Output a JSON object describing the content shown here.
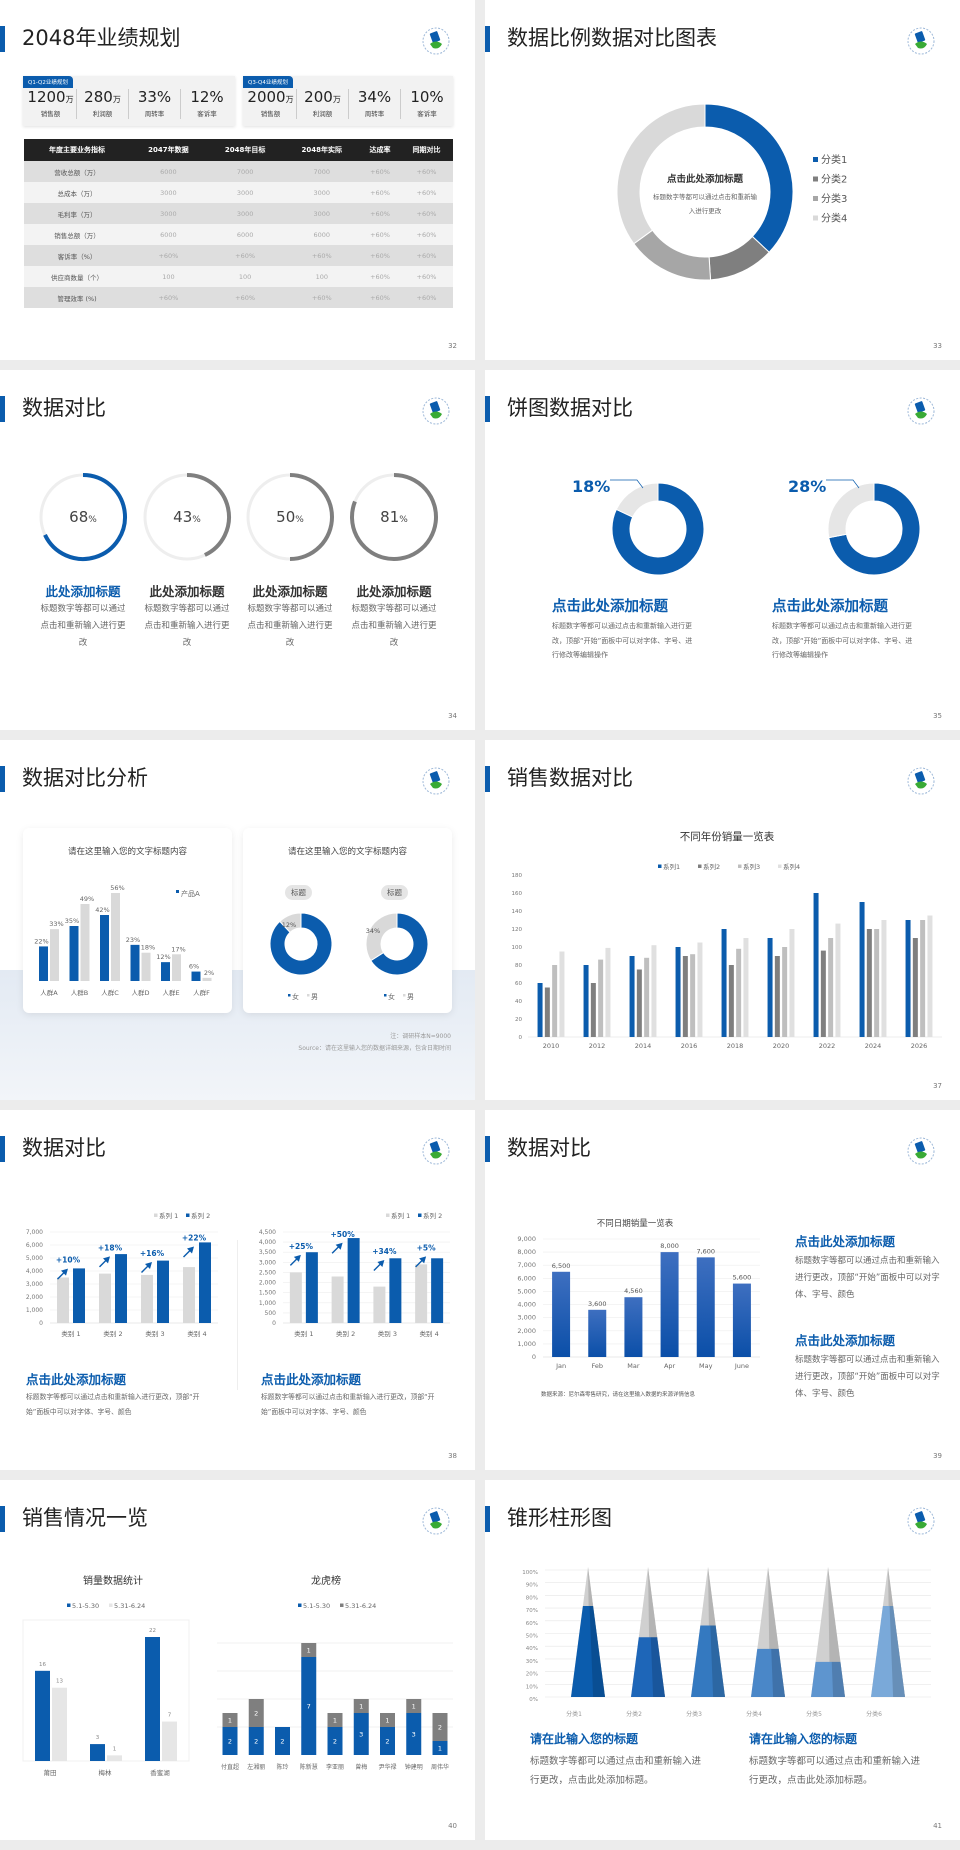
{
  "colors": {
    "accent": "#0b5cad",
    "dark_gray": "#7f7f7f",
    "mid_gray": "#a6a6a6",
    "light_gray": "#d9d9d9",
    "logo_green": "#3aaa35"
  },
  "logo_icon": "company-logo-icon",
  "slides": [
    {
      "page": "32",
      "title": "2048年业绩规划",
      "kpi_groups": [
        {
          "tag": "Q1-Q2业绩规划",
          "items": [
            {
              "value": "1200",
              "unit": "万",
              "label": "销售额"
            },
            {
              "value": "280",
              "unit": "万",
              "label": "利润额"
            },
            {
              "value": "33%",
              "unit": "",
              "label": "周转率"
            },
            {
              "value": "12%",
              "unit": "",
              "label": "客诉率"
            }
          ]
        },
        {
          "tag": "Q3-Q4业绩规划",
          "items": [
            {
              "value": "2000",
              "unit": "万",
              "label": "销售额"
            },
            {
              "value": "200",
              "unit": "万",
              "label": "利润额"
            },
            {
              "value": "34%",
              "unit": "",
              "label": "周转率"
            },
            {
              "value": "10%",
              "unit": "",
              "label": "客诉率"
            }
          ]
        }
      ],
      "table": {
        "headers": [
          "年度主要业务指标",
          "2047年数据",
          "2048年目标",
          "2048年实际",
          "达成率",
          "同期对比"
        ],
        "rows": [
          [
            "营收总额（万）",
            "6000",
            "7000",
            "7000",
            "+60%",
            "+60%"
          ],
          [
            "总成本（万）",
            "3000",
            "3000",
            "3000",
            "+60%",
            "+60%"
          ],
          [
            "毛利率（万）",
            "3000",
            "3000",
            "3000",
            "+60%",
            "+60%"
          ],
          [
            "销售总额（万）",
            "6000",
            "6000",
            "6000",
            "+60%",
            "+60%"
          ],
          [
            "客诉率（%）",
            "+60%",
            "+60%",
            "+60%",
            "+60%",
            "+60%"
          ],
          [
            "供应商数量（个）",
            "100",
            "100",
            "100",
            "+60%",
            "+60%"
          ],
          [
            "管理效率 (%)",
            "+60%",
            "+60%",
            "+60%",
            "+60%",
            "+60%"
          ]
        ]
      }
    },
    {
      "page": "33",
      "title": "数据比例数据对比图表",
      "center_title": "点击此处添加标题",
      "center_desc": "标题数字等都可以通过点击和重新输入进行更改"
    },
    {
      "page": "34",
      "title": "数据对比",
      "items": [
        {
          "percent": 68,
          "value": "68",
          "unit": "%",
          "title": "此处添加标题",
          "desc": "标题数字等都可以通过点击和重新输入进行更改",
          "color": "#0b5cad"
        },
        {
          "percent": 43,
          "value": "43",
          "unit": "%",
          "title": "此处添加标题",
          "desc": "标题数字等都可以通过点击和重新输入进行更改",
          "color": "#7f7f7f"
        },
        {
          "percent": 50,
          "value": "50",
          "unit": "%",
          "title": "此处添加标题",
          "desc": "标题数字等都可以通过点击和重新输入进行更改",
          "color": "#7f7f7f"
        },
        {
          "percent": 81,
          "value": "81",
          "unit": "%",
          "title": "此处添加标题",
          "desc": "标题数字等都可以通过点击和重新输入进行更改",
          "color": "#7f7f7f"
        }
      ]
    },
    {
      "page": "35",
      "title": "饼图数据对比",
      "items": [
        {
          "title": "点击此处添加标题",
          "desc": "标题数字等都可以通过点击和重新输入进行更改，顶部“开始”面板中可以对字体、字号、进行修改等编辑操作"
        },
        {
          "title": "点击此处添加标题",
          "desc": "标题数字等都可以通过点击和重新输入进行更改，顶部“开始”面板中可以对字体、字号、进行修改等编辑操作"
        }
      ]
    },
    {
      "page": "36",
      "title": "数据对比分析",
      "card_titles": [
        "请在这里输入您的文字标题内容",
        "请在这里输入您的文字标题内容"
      ],
      "note": "注：调研样本N=9000",
      "source": "Source：请在这里输入您的数据详细来源，包含日期时间"
    },
    {
      "page": "37",
      "title": "销售数据对比"
    },
    {
      "page": "38",
      "title": "数据对比",
      "items": [
        {
          "title": "点击此处添加标题",
          "desc": "标题数字等都可以通过点击和重新输入进行更改，顶部“开始”面板中可以对字体、字号、颜色"
        },
        {
          "title": "点击此处添加标题",
          "desc": "标题数字等都可以通过点击和重新输入进行更改，顶部“开始”面板中可以对字体、字号、颜色"
        }
      ]
    },
    {
      "page": "39",
      "title": "数据对比",
      "source": "数据来源：尼尔森零售研究，请在这里输入数据的来源详情信息",
      "items": [
        {
          "title": "点击此处添加标题",
          "desc": "标题数字等都可以通过点击和重新输入进行更改，顶部“开始”面板中可以对字体、字号、颜色"
        },
        {
          "title": "点击此处添加标题",
          "desc": "标题数字等都可以通过点击和重新输入进行更改，顶部“开始”面板中可以对字体、字号、颜色"
        }
      ]
    },
    {
      "page": "40",
      "title": "销售情况一览"
    },
    {
      "page": "41",
      "title": "锥形柱形图",
      "items": [
        {
          "title": "请在此输入您的标题",
          "desc": "标题数字等都可以通过点击和重新输入进行更改，点击此处添加标题。"
        },
        {
          "title": "请在此输入您的标题",
          "desc": "标题数字等都可以通过点击和重新输入进行更改，点击此处添加标题。"
        }
      ]
    }
  ],
  "chart_data": [
    {
      "type": "pie",
      "slide": "33",
      "categories": [
        "分类1",
        "分类2",
        "分类3",
        "分类4"
      ],
      "values": [
        37,
        12,
        16,
        35
      ],
      "colors": [
        "#0b5cad",
        "#7f7f7f",
        "#a6a6a6",
        "#d9d9d9"
      ],
      "legend": "right"
    },
    {
      "type": "pie",
      "slide": "35",
      "charts": [
        {
          "label": "18%",
          "values": [
            82,
            18
          ]
        },
        {
          "label": "28%",
          "values": [
            72,
            28
          ]
        }
      ],
      "colors": [
        "#0b5cad",
        "#e6e6e6"
      ]
    },
    {
      "type": "bar",
      "slide": "36",
      "categories": [
        "人群A",
        "人群B",
        "人群C",
        "人群D",
        "人群E",
        "人群F"
      ],
      "series": [
        {
          "name": "产品A",
          "values": [
            22,
            35,
            42,
            23,
            12,
            6
          ],
          "labels": [
            "22%",
            "35%",
            "42%",
            "23%",
            "12%",
            "6%"
          ]
        },
        {
          "values": [
            33,
            49,
            56,
            18,
            17,
            2
          ],
          "labels": [
            "33%",
            "49%",
            "56%",
            "18%",
            "17%",
            "2%"
          ]
        }
      ],
      "colors": [
        "#0b5cad",
        "#d9d9d9"
      ],
      "ylim": [
        0,
        56
      ],
      "legend": "top-right"
    },
    {
      "type": "pie",
      "slide": "36",
      "charts": [
        {
          "pill": "标题",
          "values": [
            88,
            12
          ],
          "label": "12%"
        },
        {
          "pill": "标题",
          "values": [
            66,
            34
          ],
          "label": "34%"
        }
      ],
      "categories": [
        "女",
        "男"
      ],
      "colors": [
        "#0b5cad",
        "#d9d9d9"
      ]
    },
    {
      "type": "bar",
      "slide": "37",
      "title": "不同年份销量一览表",
      "categories": [
        "2010",
        "2012",
        "2014",
        "2016",
        "2018",
        "2020",
        "2022",
        "2024",
        "2026"
      ],
      "series": [
        {
          "name": "系列1",
          "values": [
            60,
            80,
            90,
            100,
            120,
            110,
            160,
            150,
            130
          ]
        },
        {
          "name": "系列2",
          "values": [
            55,
            60,
            75,
            90,
            80,
            90,
            96,
            120,
            110
          ]
        },
        {
          "name": "系列3",
          "values": [
            80,
            86,
            88,
            92,
            98,
            100,
            110,
            120,
            130
          ]
        },
        {
          "name": "系列4",
          "values": [
            95,
            99,
            102,
            105,
            110,
            120,
            126,
            130,
            135
          ]
        }
      ],
      "colors": [
        "#0b5cad",
        "#7f7f7f",
        "#bfbfbf",
        "#e0e0e0"
      ],
      "ylim": [
        0,
        180
      ],
      "yticks": [
        "0",
        "20",
        "40",
        "60",
        "80",
        "100",
        "120",
        "140",
        "160",
        "180"
      ],
      "legend": "top"
    },
    {
      "type": "bar",
      "slide": "38",
      "categories": [
        "类别 1",
        "类别 2",
        "类别 3",
        "类别 4"
      ],
      "series": [
        {
          "name": "系列 1",
          "values": [
            3500,
            3800,
            3700,
            4300
          ]
        },
        {
          "name": "系列 2",
          "values": [
            4200,
            5300,
            4800,
            6200
          ]
        }
      ],
      "growth": [
        "+10%",
        "+18%",
        "+16%",
        "+22%"
      ],
      "colors": [
        "#d9d9d9",
        "#0b5cad"
      ],
      "ylim": [
        0,
        7000
      ],
      "yticks": [
        "0",
        "1,000",
        "2,000",
        "3,000",
        "4,000",
        "5,000",
        "6,000",
        "7,000"
      ],
      "legend": "top-right"
    },
    {
      "type": "bar",
      "slide": "38",
      "categories": [
        "类别 1",
        "类别 2",
        "类别 3",
        "类别 4"
      ],
      "series": [
        {
          "name": "系列 1",
          "values": [
            2500,
            2300,
            1800,
            2900
          ]
        },
        {
          "name": "系列 2",
          "values": [
            3500,
            4200,
            3200,
            3200
          ]
        }
      ],
      "growth": [
        "+25%",
        "+50%",
        "+34%",
        "+5%"
      ],
      "colors": [
        "#d9d9d9",
        "#0b5cad"
      ],
      "ylim": [
        0,
        4500
      ],
      "yticks": [
        "0",
        "500",
        "1,000",
        "1,500",
        "2,000",
        "2,500",
        "3,000",
        "3,500",
        "4,000",
        "4,500"
      ],
      "legend": "top-right"
    },
    {
      "type": "bar",
      "slide": "39",
      "title": "不同日期销量一览表",
      "categories": [
        "Jan",
        "Feb",
        "Mar",
        "Apr",
        "May",
        "June"
      ],
      "series": [
        {
          "values": [
            6500,
            3600,
            4560,
            8000,
            7600,
            5600
          ],
          "labels": [
            "6,500",
            "3,600",
            "4,560",
            "8,000",
            "7,600",
            "5,600"
          ]
        }
      ],
      "colors": [
        "#0b5cad"
      ],
      "ylim": [
        0,
        9000
      ],
      "yticks": [
        "0",
        "1,000",
        "2,000",
        "3,000",
        "4,000",
        "5,000",
        "6,000",
        "7,000",
        "8,000",
        "9,000"
      ]
    },
    {
      "type": "bar",
      "slide": "40",
      "title": "销量数据统计",
      "categories": [
        "莆田",
        "梅林",
        "香蜜湖"
      ],
      "series": [
        {
          "name": "5.1-5.30",
          "values": [
            16,
            3,
            22
          ]
        },
        {
          "name": "5.31-6.24",
          "values": [
            13,
            1,
            7
          ]
        }
      ],
      "colors": [
        "#0b5cad",
        "#e6e6e6"
      ],
      "ylim": [
        0,
        22
      ],
      "legend": "top"
    },
    {
      "type": "bar",
      "stacked": true,
      "slide": "40",
      "title": "龙虎榜",
      "categories": [
        "付直超",
        "左湘丽",
        "陈玲",
        "陈新慧",
        "李亚丽",
        "曾梅",
        "尹华禄",
        "钟建明",
        "周伟华"
      ],
      "series": [
        {
          "name": "5.1-5.30",
          "values": [
            2,
            2,
            2,
            7,
            2,
            3,
            2,
            3,
            1
          ]
        },
        {
          "name": "5.31-6.24",
          "values": [
            1,
            2,
            0,
            1,
            1,
            1,
            1,
            1,
            2
          ]
        }
      ],
      "colors": [
        "#0b5cad",
        "#7f7f7f"
      ],
      "legend": "top"
    },
    {
      "type": "bar",
      "subtype": "cone",
      "slide": "41",
      "categories": [
        "分类1",
        "分类2",
        "分类3",
        "分类4",
        "分类5",
        "分类6"
      ],
      "values": [
        70,
        46,
        55,
        37,
        27,
        70
      ],
      "ylim": [
        0,
        100
      ],
      "yticks": [
        "0%",
        "10%",
        "20%",
        "30%",
        "40%",
        "50%",
        "60%",
        "70%",
        "80%",
        "90%",
        "100%"
      ],
      "colors": [
        "#0b5cad",
        "#1e66b8",
        "#3479c0",
        "#4a87c8",
        "#5e95cf",
        "#7aa9d9"
      ]
    }
  ]
}
